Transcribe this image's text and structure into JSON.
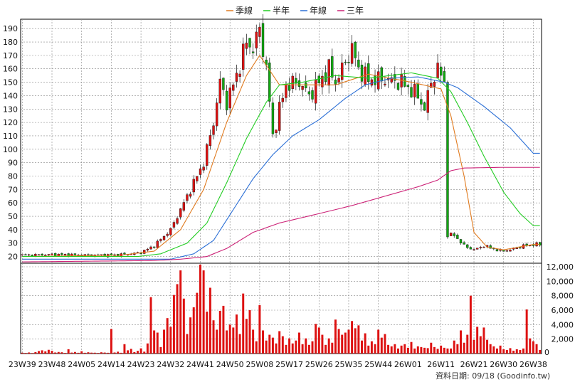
{
  "legend": [
    {
      "label": "季線",
      "color": "#e07b20"
    },
    {
      "label": "半年",
      "color": "#22cc22"
    },
    {
      "label": "年線",
      "color": "#2b6fd6"
    },
    {
      "label": "三年",
      "color": "#cc2277"
    }
  ],
  "footer": "資料日期: 09/18  (Goodinfo.tw)",
  "chart_data": [
    {
      "type": "candlestick",
      "title": "",
      "ylim": [
        15,
        197
      ],
      "yticks": [
        20,
        30,
        40,
        50,
        60,
        70,
        80,
        90,
        100,
        110,
        120,
        130,
        140,
        150,
        160,
        170,
        180,
        190
      ],
      "x_tick_labels": [
        "23W39",
        "23W48",
        "24W05",
        "24W14",
        "24W23",
        "24W32",
        "24W41",
        "24W50",
        "25W08",
        "25W17",
        "25W26",
        "25W35",
        "25W44",
        "26W01",
        "26W11",
        "26W21",
        "26W30",
        "26W38"
      ],
      "x_tick_index": [
        0,
        9,
        18,
        27,
        36,
        45,
        54,
        63,
        72,
        81,
        90,
        99,
        108,
        117,
        127,
        137,
        146,
        155
      ],
      "close_anchors": [
        [
          0,
          21
        ],
        [
          10,
          21.5
        ],
        [
          20,
          21
        ],
        [
          27,
          21
        ],
        [
          33,
          22
        ],
        [
          36,
          23
        ],
        [
          40,
          28
        ],
        [
          45,
          40
        ],
        [
          50,
          65
        ],
        [
          55,
          90
        ],
        [
          58,
          120
        ],
        [
          60,
          150
        ],
        [
          62,
          135
        ],
        [
          65,
          155
        ],
        [
          68,
          180
        ],
        [
          70,
          175
        ],
        [
          72,
          190
        ],
        [
          74,
          160
        ],
        [
          76,
          110
        ],
        [
          78,
          130
        ],
        [
          80,
          148
        ],
        [
          84,
          150
        ],
        [
          87,
          140
        ],
        [
          90,
          150
        ],
        [
          93,
          160
        ],
        [
          95,
          150
        ],
        [
          98,
          165
        ],
        [
          100,
          175
        ],
        [
          102,
          160
        ],
        [
          105,
          152
        ],
        [
          110,
          152
        ],
        [
          115,
          150
        ],
        [
          120,
          140
        ],
        [
          122,
          130
        ],
        [
          124,
          150
        ],
        [
          126,
          160
        ],
        [
          128,
          150
        ],
        [
          129,
          36
        ],
        [
          131,
          36
        ],
        [
          134,
          28
        ],
        [
          137,
          25
        ],
        [
          140,
          28
        ],
        [
          145,
          24
        ],
        [
          148,
          25
        ],
        [
          152,
          28
        ],
        [
          155,
          29
        ]
      ],
      "series": [
        {
          "name": "季線",
          "color": "#e07b20",
          "anchors": [
            [
              0,
              20
            ],
            [
              30,
              21
            ],
            [
              40,
              24
            ],
            [
              48,
              40
            ],
            [
              55,
              70
            ],
            [
              62,
              120
            ],
            [
              68,
              155
            ],
            [
              72,
              170
            ],
            [
              78,
              148
            ],
            [
              85,
              148
            ],
            [
              95,
              148
            ],
            [
              105,
              156
            ],
            [
              118,
              150
            ],
            [
              127,
              145
            ],
            [
              130,
              125
            ],
            [
              134,
              80
            ],
            [
              137,
              38
            ],
            [
              141,
              27
            ],
            [
              146,
              25
            ],
            [
              155,
              29
            ]
          ]
        },
        {
          "name": "半年",
          "color": "#22cc22",
          "anchors": [
            [
              0,
              20
            ],
            [
              35,
              20
            ],
            [
              42,
              22
            ],
            [
              50,
              30
            ],
            [
              56,
              45
            ],
            [
              62,
              75
            ],
            [
              68,
              108
            ],
            [
              74,
              135
            ],
            [
              78,
              148
            ],
            [
              85,
              150
            ],
            [
              95,
              155
            ],
            [
              105,
              153
            ],
            [
              118,
              157
            ],
            [
              126,
              153
            ],
            [
              130,
              143
            ],
            [
              135,
              120
            ],
            [
              140,
              95
            ],
            [
              146,
              68
            ],
            [
              151,
              52
            ],
            [
              155,
              43
            ]
          ]
        },
        {
          "name": "年線",
          "color": "#2b6fd6",
          "anchors": [
            [
              0,
              18
            ],
            [
              45,
              18
            ],
            [
              52,
              22
            ],
            [
              58,
              32
            ],
            [
              64,
              55
            ],
            [
              70,
              78
            ],
            [
              76,
              96
            ],
            [
              82,
              110
            ],
            [
              90,
              122
            ],
            [
              98,
              138
            ],
            [
              104,
              148
            ],
            [
              112,
              153
            ],
            [
              120,
              154
            ],
            [
              128,
              150
            ],
            [
              132,
              146
            ],
            [
              140,
              132
            ],
            [
              148,
              116
            ],
            [
              155,
              97
            ]
          ]
        },
        {
          "name": "三年",
          "color": "#cc2277",
          "anchors": [
            [
              0,
              16
            ],
            [
              40,
              17
            ],
            [
              48,
              18
            ],
            [
              56,
              20
            ],
            [
              62,
              26
            ],
            [
              70,
              38
            ],
            [
              78,
              45
            ],
            [
              90,
              52
            ],
            [
              100,
              58
            ],
            [
              110,
              65
            ],
            [
              120,
              72
            ],
            [
              126,
              77
            ],
            [
              130,
              84
            ],
            [
              134,
              86
            ],
            [
              145,
              86.5
            ],
            [
              155,
              86.5
            ]
          ]
        }
      ]
    },
    {
      "type": "bar",
      "title": "",
      "ylabel": "",
      "ylim": [
        0,
        12000
      ],
      "yticks": [
        2000,
        4000,
        6000,
        8000,
        10000,
        12000
      ],
      "ytick_labels": [
        "2,000",
        "4,000",
        "6,000",
        "8,000",
        "10,000",
        "12,000"
      ],
      "color": "#dd1111",
      "values": [
        120,
        90,
        150,
        80,
        200,
        350,
        450,
        300,
        520,
        380,
        150,
        220,
        180,
        90,
        600,
        140,
        220,
        110,
        320,
        110,
        180,
        130,
        120,
        90,
        180,
        140,
        110,
        3400,
        150,
        260,
        110,
        1300,
        450,
        650,
        200,
        380,
        720,
        260,
        1400,
        7800,
        3200,
        2900,
        900,
        3300,
        4900,
        3700,
        8100,
        9600,
        11500,
        7600,
        2700,
        5000,
        6400,
        8400,
        12300,
        11500,
        5800,
        9100,
        4600,
        3300,
        5900,
        6600,
        3200,
        4000,
        3600,
        5400,
        2700,
        8300,
        4800,
        6000,
        3300,
        1700,
        6700,
        3200,
        1800,
        2600,
        2200,
        1400,
        3100,
        2400,
        1200,
        2100,
        1400,
        1800,
        2900,
        1300,
        2100,
        1200,
        1700,
        4100,
        3600,
        2600,
        1200,
        2100,
        1500,
        4700,
        3400,
        2600,
        2900,
        3300,
        4500,
        3500,
        3900,
        1800,
        2800,
        1100,
        1700,
        1300,
        3300,
        2200,
        2700,
        1200,
        1000,
        1300,
        700,
        1100,
        1300,
        800,
        1600,
        700,
        1000,
        900,
        800,
        750,
        1500,
        900,
        650,
        1100,
        800,
        700,
        700,
        1800,
        1300,
        3200,
        1500,
        2600,
        8000,
        1900,
        3700,
        2400,
        3600,
        1900,
        1300,
        1000,
        700,
        1100,
        600,
        500,
        750,
        400,
        600,
        500,
        700,
        6100,
        2100,
        1700,
        1300,
        500
      ]
    }
  ]
}
